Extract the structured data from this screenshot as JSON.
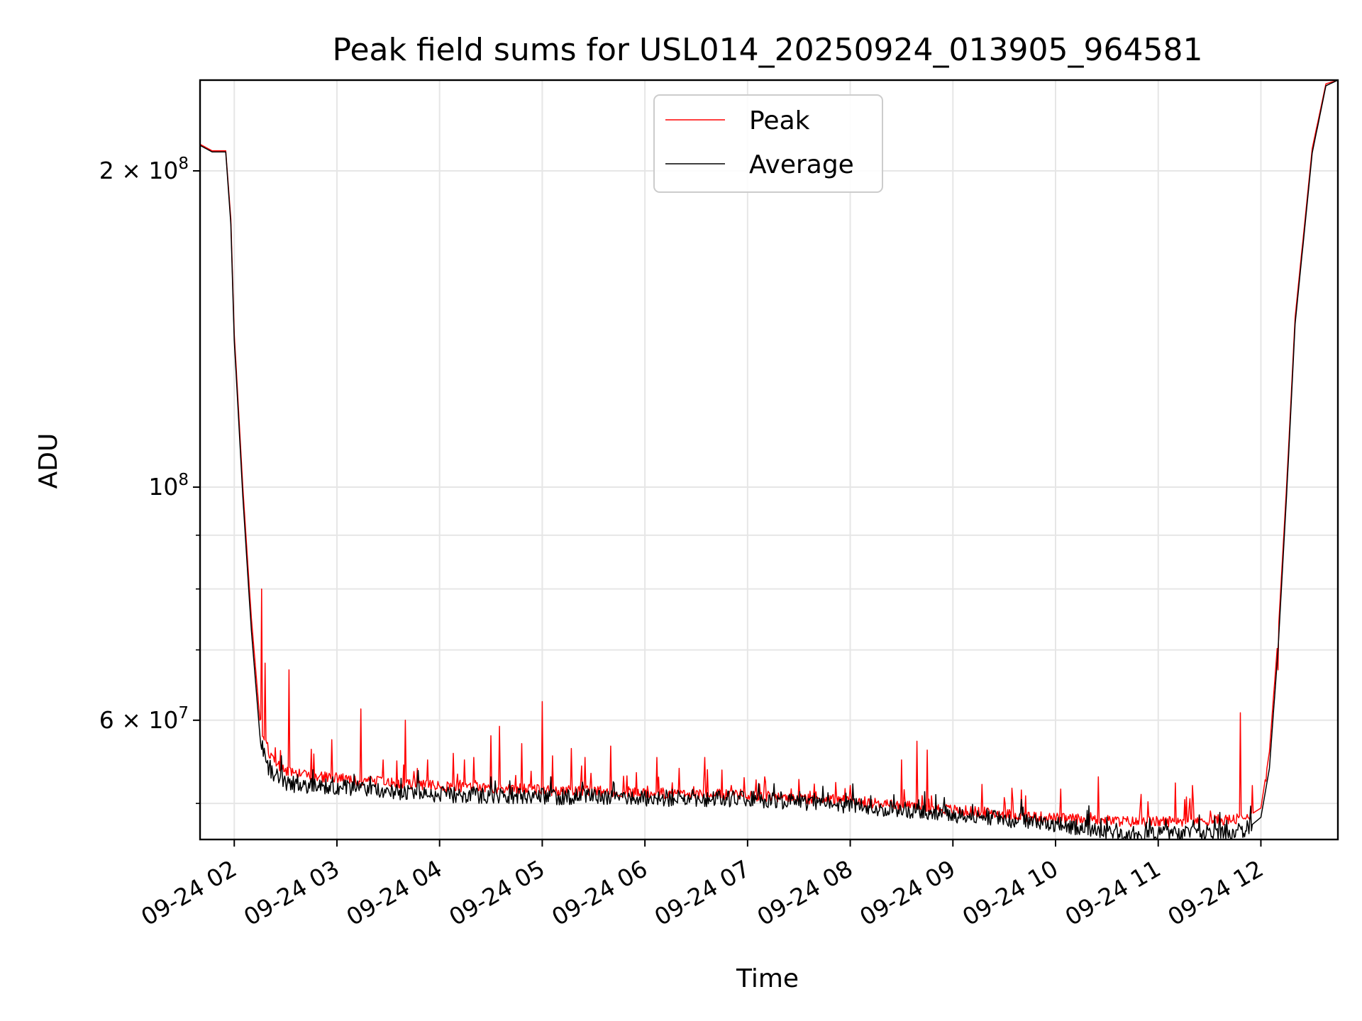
{
  "chart_data": {
    "type": "line",
    "title": "Peak field sums for USL014_20250924_013905_964581",
    "xlabel": "Time",
    "ylabel": "ADU",
    "yscale": "log",
    "ylim": [
      46200000,
      244000000
    ],
    "xlim": [
      "2025-09-24 01:40",
      "2025-09-24 12:45"
    ],
    "grid": true,
    "legend_position": "upper center",
    "x_ticks": [
      {
        "time": "2025-09-24 02:00",
        "label": "09-24 02"
      },
      {
        "time": "2025-09-24 03:00",
        "label": "09-24 03"
      },
      {
        "time": "2025-09-24 04:00",
        "label": "09-24 04"
      },
      {
        "time": "2025-09-24 05:00",
        "label": "09-24 05"
      },
      {
        "time": "2025-09-24 06:00",
        "label": "09-24 06"
      },
      {
        "time": "2025-09-24 07:00",
        "label": "09-24 07"
      },
      {
        "time": "2025-09-24 08:00",
        "label": "09-24 08"
      },
      {
        "time": "2025-09-24 09:00",
        "label": "09-24 09"
      },
      {
        "time": "2025-09-24 10:00",
        "label": "09-24 10"
      },
      {
        "time": "2025-09-24 11:00",
        "label": "09-24 11"
      },
      {
        "time": "2025-09-24 12:00",
        "label": "09-24 12"
      }
    ],
    "y_major_ticks": [
      {
        "value": 200000000,
        "base": "2 × 10",
        "exp": "8"
      },
      {
        "value": 100000000,
        "base": "10",
        "exp": "8"
      },
      {
        "value": 60000000,
        "base": "6 × 10",
        "exp": "7"
      }
    ],
    "y_minor_ticks": [
      50000000,
      70000000,
      80000000,
      90000000
    ],
    "series": [
      {
        "name": "Peak",
        "color": "#ff0000",
        "baseline": [
          [
            "01:40",
            212000000
          ],
          [
            "01:47",
            209000000
          ],
          [
            "01:55",
            209000000
          ],
          [
            "01:58",
            180000000
          ],
          [
            "02:00",
            140000000
          ],
          [
            "02:05",
            100000000
          ],
          [
            "02:10",
            75000000
          ],
          [
            "02:15",
            60000000
          ],
          [
            "02:20",
            55500000
          ],
          [
            "02:30",
            53500000
          ],
          [
            "03:00",
            52800000
          ],
          [
            "03:30",
            52300000
          ],
          [
            "04:00",
            51900000
          ],
          [
            "05:00",
            51500000
          ],
          [
            "06:00",
            51200000
          ],
          [
            "07:00",
            50900000
          ],
          [
            "08:00",
            50300000
          ],
          [
            "09:00",
            49300000
          ],
          [
            "10:00",
            48400000
          ],
          [
            "10:50",
            48000000
          ],
          [
            "11:50",
            48300000
          ],
          [
            "12:00",
            49500000
          ],
          [
            "12:05",
            56000000
          ],
          [
            "12:10",
            72000000
          ],
          [
            "12:15",
            100000000
          ],
          [
            "12:20",
            145000000
          ],
          [
            "12:30",
            210000000
          ],
          [
            "12:38",
            242000000
          ],
          [
            "12:45",
            244000000
          ]
        ],
        "spikes": [
          [
            "02:16",
            80000000
          ],
          [
            "02:18",
            68000000
          ],
          [
            "02:32",
            67000000
          ],
          [
            "02:24",
            56500000
          ],
          [
            "02:45",
            56300000
          ],
          [
            "02:57",
            57500000
          ],
          [
            "03:14",
            61500000
          ],
          [
            "03:27",
            55000000
          ],
          [
            "03:40",
            60000000
          ],
          [
            "03:53",
            55000000
          ],
          [
            "04:08",
            55800000
          ],
          [
            "04:20",
            55300000
          ],
          [
            "04:30",
            58000000
          ],
          [
            "04:35",
            59200000
          ],
          [
            "04:48",
            57000000
          ],
          [
            "05:00",
            62500000
          ],
          [
            "05:06",
            55500000
          ],
          [
            "05:17",
            56400000
          ],
          [
            "05:25",
            55300000
          ],
          [
            "05:40",
            56700000
          ],
          [
            "05:55",
            53500000
          ],
          [
            "06:07",
            55300000
          ],
          [
            "06:20",
            54000000
          ],
          [
            "06:35",
            55300000
          ],
          [
            "06:45",
            53800000
          ],
          [
            "07:10",
            53000000
          ],
          [
            "07:30",
            52700000
          ],
          [
            "08:00",
            52000000
          ],
          [
            "08:30",
            55000000
          ],
          [
            "08:39",
            57300000
          ],
          [
            "08:45",
            56200000
          ],
          [
            "09:40",
            51500000
          ],
          [
            "10:03",
            51600000
          ],
          [
            "10:25",
            53000000
          ],
          [
            "10:50",
            51000000
          ],
          [
            "11:10",
            52300000
          ],
          [
            "11:20",
            52000000
          ],
          [
            "11:48",
            61000000
          ],
          [
            "11:55",
            52000000
          ],
          [
            "12:03",
            52500000
          ],
          [
            "12:10",
            67000000
          ]
        ]
      },
      {
        "name": "Average",
        "color": "#000000",
        "baseline": [
          [
            "01:40",
            211500000
          ],
          [
            "01:47",
            208500000
          ],
          [
            "01:55",
            208500000
          ],
          [
            "01:58",
            178000000
          ],
          [
            "02:00",
            138000000
          ],
          [
            "02:05",
            98000000
          ],
          [
            "02:10",
            73000000
          ],
          [
            "02:15",
            58000000
          ],
          [
            "02:20",
            53800000
          ],
          [
            "02:30",
            52200000
          ],
          [
            "03:00",
            51800000
          ],
          [
            "03:30",
            51400000
          ],
          [
            "04:00",
            51000000
          ],
          [
            "05:00",
            50800000
          ],
          [
            "06:00",
            50600000
          ],
          [
            "07:00",
            50500000
          ],
          [
            "08:00",
            49800000
          ],
          [
            "09:00",
            48800000
          ],
          [
            "10:00",
            47800000
          ],
          [
            "10:50",
            46600000
          ],
          [
            "11:50",
            47000000
          ],
          [
            "12:00",
            48500000
          ],
          [
            "12:05",
            54000000
          ],
          [
            "12:10",
            70000000
          ],
          [
            "12:15",
            98000000
          ],
          [
            "12:20",
            143000000
          ],
          [
            "12:30",
            208000000
          ],
          [
            "12:38",
            241000000
          ],
          [
            "12:45",
            244000000
          ]
        ],
        "spikes": [
          [
            "02:22",
            54300000
          ],
          [
            "03:10",
            53300000
          ],
          [
            "04:30",
            53000000
          ],
          [
            "05:05",
            53000000
          ],
          [
            "06:40",
            51300000
          ],
          [
            "08:40",
            50400000
          ],
          [
            "11:40",
            48200000
          ]
        ]
      }
    ]
  }
}
